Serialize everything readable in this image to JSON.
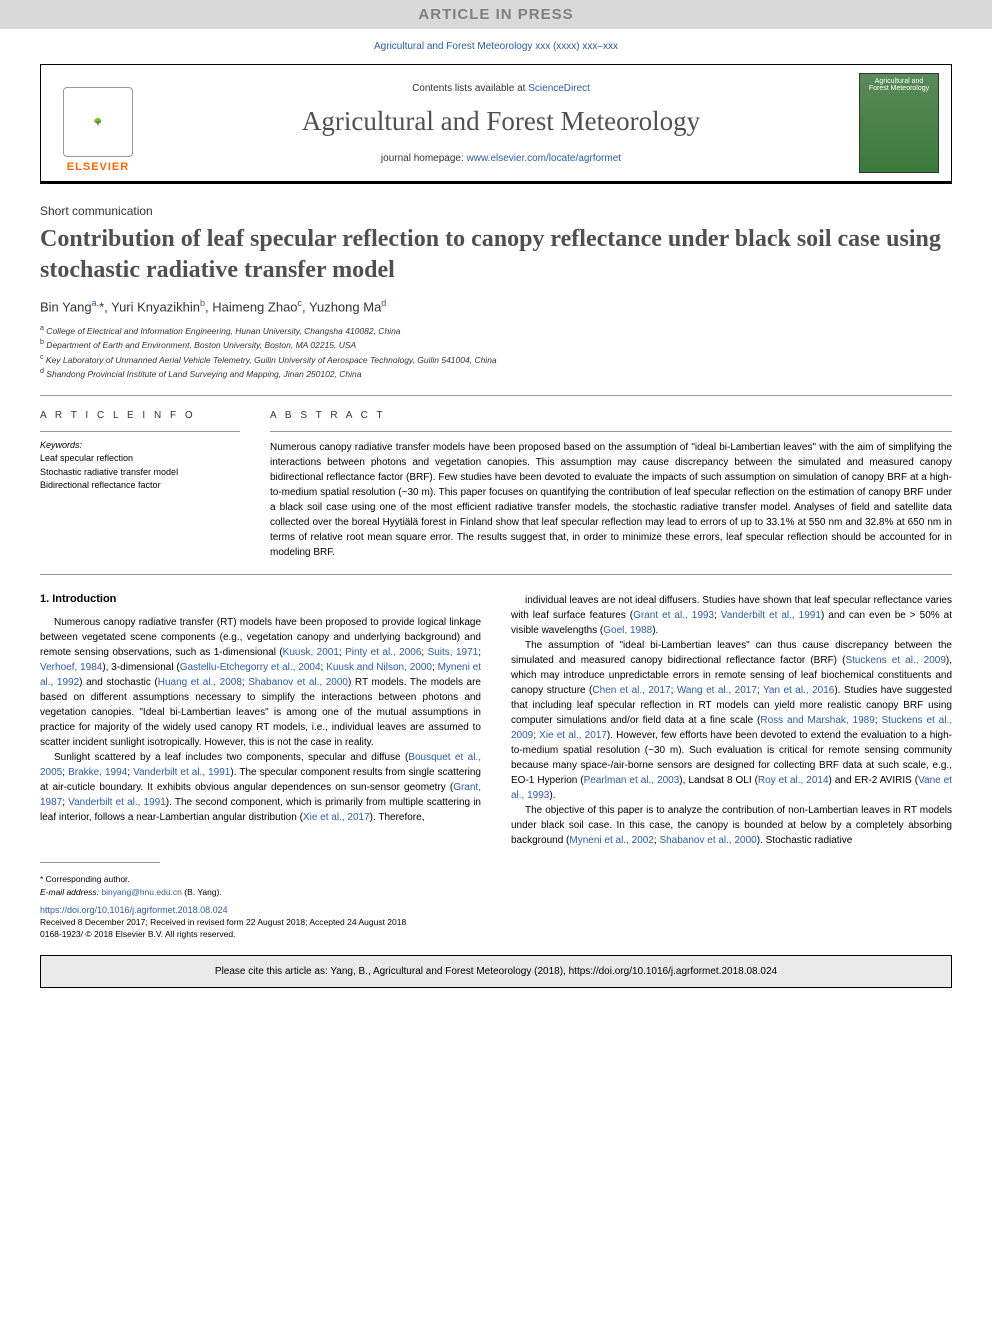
{
  "banner": "ARTICLE IN PRESS",
  "journal_ref": "Agricultural and Forest Meteorology xxx (xxxx) xxx–xxx",
  "header": {
    "contents_prefix": "Contents lists available at ",
    "contents_link": "ScienceDirect",
    "journal_name": "Agricultural and Forest Meteorology",
    "homepage_prefix": "journal homepage: ",
    "homepage_link": "www.elsevier.com/locate/agrformet",
    "elsevier": "ELSEVIER",
    "cover_text": "Agricultural and Forest Meteorology"
  },
  "article_type": "Short communication",
  "title": "Contribution of leaf specular reflection to canopy reflectance under black soil case using stochastic radiative transfer model",
  "authors_html": "Bin Yang<sup>a,</sup>*, Yuri Knyazikhin<sup>b</sup>, Haimeng Zhao<sup>c</sup>, Yuzhong Ma<sup>d</sup>",
  "affiliations": [
    {
      "sup": "a",
      "text": "College of Electrical and Information Engineering, Hunan University, Changsha 410082, China"
    },
    {
      "sup": "b",
      "text": "Department of Earth and Environment, Boston University, Boston, MA 02215, USA"
    },
    {
      "sup": "c",
      "text": "Key Laboratory of Unmanned Aerial Vehicle Telemetry, Guilin University of Aerospace Technology, Guilin 541004, China"
    },
    {
      "sup": "d",
      "text": "Shandong Provincial Institute of Land Surveying and Mapping, Jinan 250102, China"
    }
  ],
  "info": {
    "article_info_label": "A R T I C L E  I N F O",
    "abstract_label": "A B S T R A C T",
    "keywords_label": "Keywords:",
    "keywords": [
      "Leaf specular reflection",
      "Stochastic radiative transfer model",
      "Bidirectional reflectance factor"
    ]
  },
  "abstract": "Numerous canopy radiative transfer models have been proposed based on the assumption of \"ideal bi-Lambertian leaves\" with the aim of simplifying the interactions between photons and vegetation canopies. This assumption may cause discrepancy between the simulated and measured canopy bidirectional reflectance factor (BRF). Few studies have been devoted to evaluate the impacts of such assumption on simulation of canopy BRF at a high-to-medium spatial resolution (~30 m). This paper focuses on quantifying the contribution of leaf specular reflection on the estimation of canopy BRF under a black soil case using one of the most efficient radiative transfer models, the stochastic radiative transfer model. Analyses of field and satellite data collected over the boreal Hyytiälä forest in Finland show that leaf specular reflection may lead to errors of up to 33.1% at 550 nm and 32.8% at 650 nm in terms of relative root mean square error. The results suggest that, in order to minimize these errors, leaf specular reflection should be accounted for in modeling BRF.",
  "section1": {
    "heading": "1. Introduction",
    "col1": [
      "Numerous canopy radiative transfer (RT) models have been proposed to provide logical linkage between vegetated scene components (e.g., vegetation canopy and underlying background) and remote sensing observations, such as 1-dimensional (<a>Kuusk, 2001</a>; <a>Pinty et al., 2006</a>; <a>Suits, 1971</a>; <a>Verhoef, 1984</a>), 3-dimensional (<a>Gastellu-Etchegorry et al., 2004</a>; <a>Kuusk and Nilson, 2000</a>; <a>Myneni et al., 1992</a>) and stochastic (<a>Huang et al., 2008</a>; <a>Shabanov et al., 2000</a>) RT models. The models are based on different assumptions necessary to simplify the interactions between photons and vegetation canopies. \"Ideal bi-Lambertian leaves\" is among one of the mutual assumptions in practice for majority of the widely used canopy RT models, i.e., individual leaves are assumed to scatter incident sunlight isotropically. However, this is not the case in reality.",
      "Sunlight scattered by a leaf includes two components, specular and diffuse (<a>Bousquet et al., 2005</a>; <a>Brakke, 1994</a>; <a>Vanderbilt et al., 1991</a>). The specular component results from single scattering at air-cuticle boundary. It exhibits obvious angular dependences on sun-sensor geometry (<a>Grant, 1987</a>; <a>Vanderbilt et al., 1991</a>). The second component, which is primarily from multiple scattering in leaf interior, follows a near-Lambertian angular distribution (<a>Xie et al., 2017</a>). Therefore,"
    ],
    "col2": [
      "individual leaves are not ideal diffusers. Studies have shown that leaf specular reflectance varies with leaf surface features (<a>Grant et al., 1993</a>; <a>Vanderbilt et al., 1991</a>) and can even be > 50% at visible wavelengths (<a>Goel, 1988</a>).",
      "The assumption of \"ideal bi-Lambertian leaves\" can thus cause discrepancy between the simulated and measured canopy bidirectional reflectance factor (BRF) (<a>Stuckens et al., 2009</a>), which may introduce unpredictable errors in remote sensing of leaf biochemical constituents and canopy structure (<a>Chen et al., 2017</a>; <a>Wang et al., 2017</a>; <a>Yan et al., 2016</a>). Studies have suggested that including leaf specular reflection in RT models can yield more realistic canopy BRF using computer simulations and/or field data at a fine scale (<a>Ross and Marshak, 1989</a>; <a>Stuckens et al., 2009</a>; <a>Xie et al., 2017</a>). However, few efforts have been devoted to extend the evaluation to a high-to-medium spatial resolution (~30 m). Such evaluation is critical for remote sensing community because many space-/air-borne sensors are designed for collecting BRF data at such scale, e.g., EO-1 Hyperion (<a>Pearlman et al., 2003</a>), Landsat 8 OLI (<a>Roy et al., 2014</a>) and ER-2 AVIRIS (<a>Vane et al., 1993</a>).",
      "The objective of this paper is to analyze the contribution of non-Lambertian leaves in RT models under black soil case. In this case, the canopy is bounded at below by a completely absorbing background (<a>Myneni et al., 2002</a>; <a>Shabanov et al., 2000</a>). Stochastic radiative"
    ]
  },
  "footnotes": {
    "corr": "* Corresponding author.",
    "email_label": "E-mail address: ",
    "email": "binyang@hnu.edu.cn",
    "email_suffix": " (B. Yang)."
  },
  "doi": "https://doi.org/10.1016/j.agrformet.2018.08.024",
  "received": "Received 8 December 2017; Received in revised form 22 August 2018; Accepted 24 August 2018",
  "copyright": "0168-1923/ © 2018 Elsevier B.V. All rights reserved.",
  "cite": "Please cite this article as: Yang, B., Agricultural and Forest Meteorology (2018), https://doi.org/10.1016/j.agrformet.2018.08.024",
  "colors": {
    "link": "#2e5c9e",
    "banner_bg": "#d9d9d9",
    "banner_fg": "#808080",
    "elsevier_orange": "#ff6600",
    "title_gray": "#505050"
  }
}
